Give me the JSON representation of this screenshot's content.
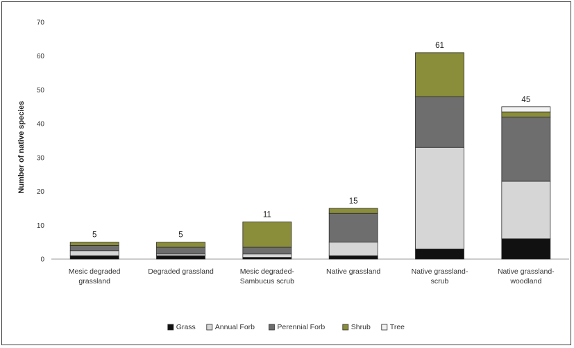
{
  "chart_data": {
    "type": "bar",
    "stacked": true,
    "title": "",
    "xlabel": "",
    "ylabel": "Number of native species",
    "ylim": [
      0,
      70
    ],
    "yticks": [
      0,
      10,
      20,
      30,
      40,
      50,
      60,
      70
    ],
    "grid": false,
    "legend_position": "bottom",
    "categories": [
      [
        "Mesic degraded",
        "grassland"
      ],
      [
        "Degraded grassland"
      ],
      [
        "Mesic degraded-",
        "Sambucus scrub"
      ],
      [
        "Native grassland"
      ],
      [
        "Native grassland-",
        "scrub"
      ],
      [
        "Native grassland-",
        "woodland"
      ]
    ],
    "totals": [
      "5",
      "5",
      "11",
      "15",
      "61",
      "45"
    ],
    "series": [
      {
        "name": "Grass",
        "color": "#111111",
        "values": [
          1,
          1,
          0.5,
          1,
          3,
          6
        ]
      },
      {
        "name": "Annual Forb",
        "color": "#d6d6d6",
        "values": [
          1.5,
          0.5,
          1,
          4,
          30,
          17
        ]
      },
      {
        "name": "Perennial Forb",
        "color": "#6e6e6e",
        "values": [
          1.5,
          2,
          2,
          8.5,
          15,
          19
        ]
      },
      {
        "name": "Shrub",
        "color": "#8a8d3a",
        "values": [
          1,
          1.5,
          7.5,
          1.5,
          13,
          1.5
        ]
      },
      {
        "name": "Tree",
        "color": "#f2f2f2",
        "values": [
          0,
          0,
          0,
          0,
          0,
          1.5
        ]
      }
    ]
  }
}
